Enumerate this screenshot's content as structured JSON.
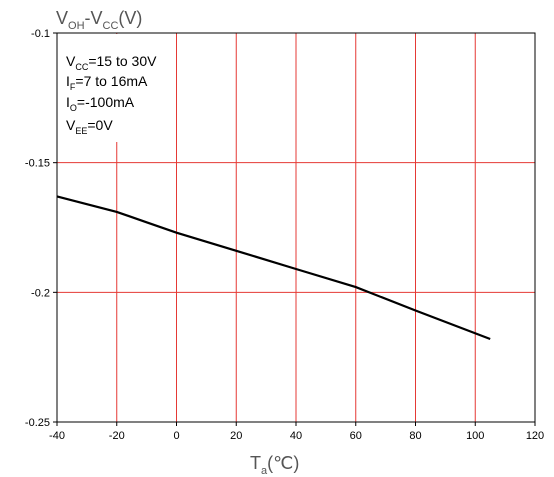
{
  "chart_data": {
    "type": "line",
    "title": "",
    "ylabel": {
      "main": "V",
      "sub1": "OH",
      "mid": "-V",
      "sub2": "CC",
      "unit": "(V)"
    },
    "xlabel": {
      "main": "T",
      "sub": "a",
      "unit": "(℃)"
    },
    "xlim": [
      -40,
      120
    ],
    "ylim": [
      -0.25,
      -0.1
    ],
    "x_ticks": [
      -40,
      -20,
      0,
      20,
      40,
      60,
      80,
      100,
      120
    ],
    "x_tick_labels": [
      "-40",
      "-20",
      "0",
      "20",
      "40",
      "60",
      "80",
      "100",
      "120"
    ],
    "y_ticks": [
      -0.1,
      -0.15,
      -0.2,
      -0.25
    ],
    "y_tick_labels": [
      "-0.1",
      "-0.15",
      "-0.2",
      "-0.25"
    ],
    "grid": true,
    "grid_color": "#e53935",
    "line_color": "#000000",
    "annotation": [
      {
        "main": "V",
        "sub": "CC",
        "rest": "=15 to 30V"
      },
      {
        "main": "I",
        "sub": "F",
        "rest": "=7 to 16mA"
      },
      {
        "main": "I",
        "sub": "O",
        "rest": "=-100mA"
      },
      {
        "main": "V",
        "sub": "EE",
        "rest": "=0V"
      }
    ],
    "series": [
      {
        "x": [
          -40,
          -30,
          -20,
          -10,
          0,
          20,
          40,
          60,
          80,
          105
        ],
        "y": [
          -0.163,
          -0.166,
          -0.169,
          -0.173,
          -0.177,
          -0.184,
          -0.191,
          -0.198,
          -0.207,
          -0.218
        ]
      }
    ]
  }
}
